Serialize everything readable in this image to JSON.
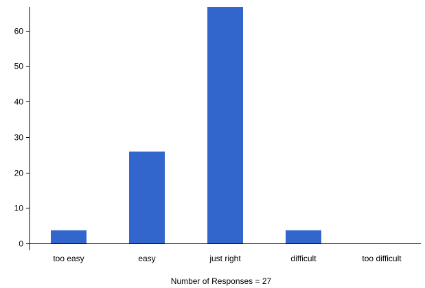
{
  "chart_data": {
    "type": "bar",
    "categories": [
      "too easy",
      "easy",
      "just right",
      "difficult",
      "too difficult"
    ],
    "values": [
      3.7,
      25.9,
      66.7,
      3.7,
      0
    ],
    "ylim": [
      0,
      66.7
    ],
    "yticks": [
      0,
      10,
      20,
      30,
      40,
      50,
      60
    ],
    "caption": "Number of Responses = 27",
    "bar_color": "#3366cc",
    "grid": false,
    "legend": "none"
  }
}
